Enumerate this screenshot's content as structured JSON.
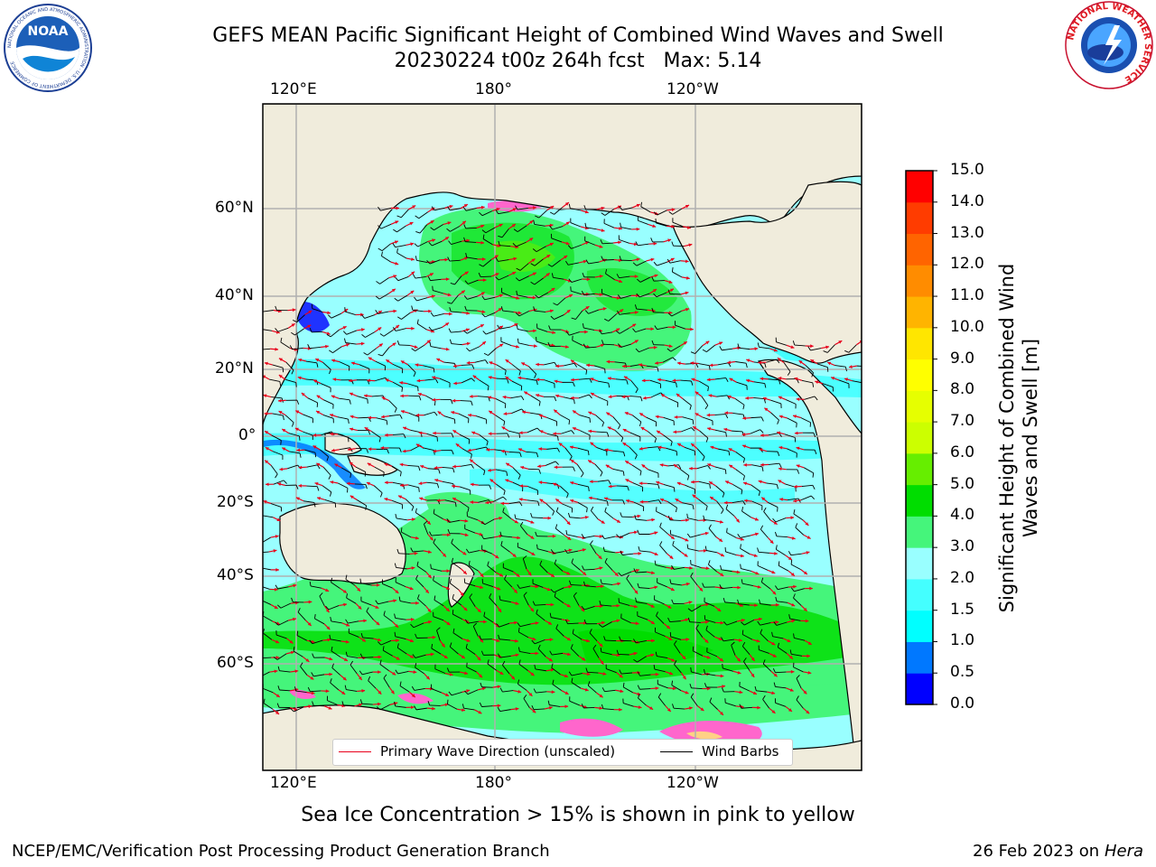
{
  "header": {
    "title_line1": "GEFS MEAN Pacific Significant Height of Combined Wind Waves and Swell",
    "title_line2": "20230224 t00z 264h fcst   Max: 5.14"
  },
  "logos": {
    "left_text": "NOAA",
    "left_ring_text": "NATIONAL OCEANIC AND ATMOSPHERIC ADMINISTRATION · U.S. DEPARTMENT OF COMMERCE",
    "right_ring_text": "NATIONAL WEATHER SERVICE"
  },
  "map": {
    "top_lon_labels": [
      "120°E",
      "180°",
      "120°W"
    ],
    "bottom_lon_labels": [
      "120°E",
      "180°",
      "120°W"
    ],
    "lat_labels": [
      "60°N",
      "40°N",
      "20°N",
      "0°",
      "20°S",
      "40°S",
      "60°S"
    ],
    "colors": {
      "land": "#f0ecdc",
      "grid": "#b0b0b0",
      "wave_dir": "#e8001a",
      "barb": "#000000"
    }
  },
  "legend": {
    "wave_label": "Primary Wave Direction (unscaled)",
    "barb_label": "Wind Barbs"
  },
  "colorbar": {
    "title": "Significant Height of Combined Wind Waves and Swell [m]",
    "ticks": [
      "0.0",
      "0.5",
      "1.0",
      "1.5",
      "2.0",
      "3.0",
      "4.0",
      "5.0",
      "6.0",
      "7.0",
      "8.0",
      "9.0",
      "10.0",
      "11.0",
      "12.0",
      "13.0",
      "14.0",
      "15.0"
    ],
    "colors": [
      "#0000ff",
      "#0078ff",
      "#00ffff",
      "#44ffff",
      "#99ffff",
      "#45f57b",
      "#00dd00",
      "#66ee00",
      "#ccff00",
      "#e6ff00",
      "#ffff00",
      "#ffe600",
      "#ffb400",
      "#ff8c00",
      "#ff6400",
      "#ff3c00",
      "#ff0000"
    ]
  },
  "footer": {
    "ice_note": "Sea Ice Concentration > 15% is shown in pink to yellow",
    "credit": "NCEP/EMC/Verification Post Processing Product Generation Branch",
    "date": "26 Feb 2023 on",
    "machine": "Hera"
  }
}
